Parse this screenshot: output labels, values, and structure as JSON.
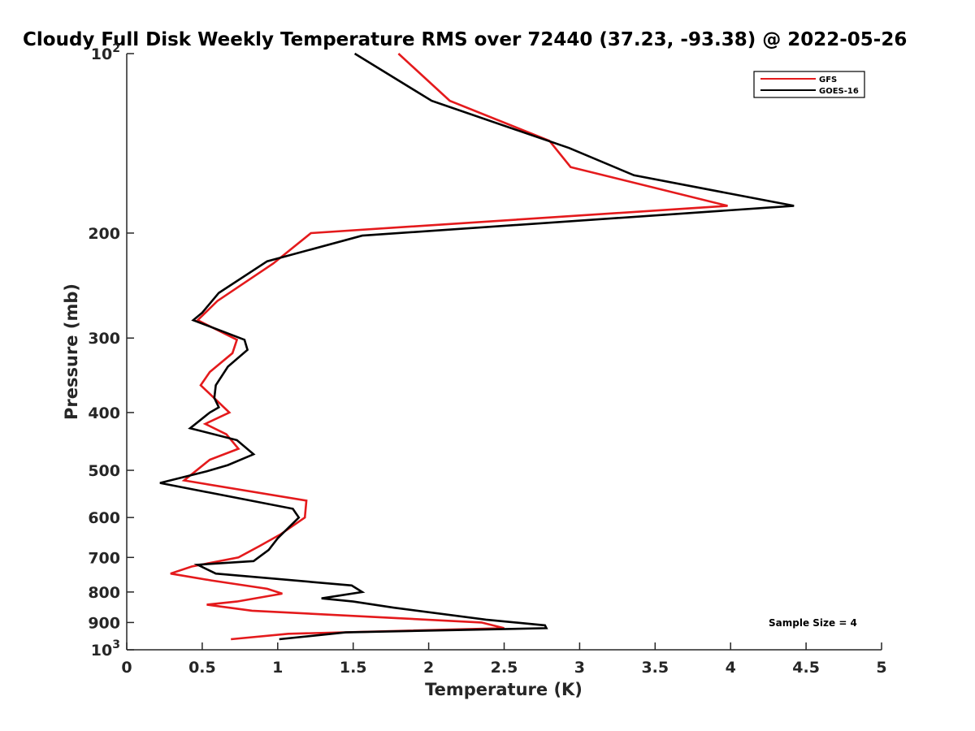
{
  "chart_data": {
    "type": "line",
    "title": "Cloudy Full Disk Weekly Temperature RMS over 72440 (37.23, -93.38) @ 2022-05-26",
    "xlabel": "Temperature (K)",
    "ylabel": "Pressure (mb)",
    "xlim": [
      0,
      5
    ],
    "ylim": [
      100,
      1000
    ],
    "y_scale": "log",
    "y_reversed": true,
    "x_ticks": [
      "0",
      "0.5",
      "1",
      "1.5",
      "2",
      "2.5",
      "3",
      "3.5",
      "4",
      "4.5",
      "5"
    ],
    "y_tick_values": [
      100,
      200,
      300,
      400,
      500,
      600,
      700,
      800,
      900,
      1000
    ],
    "y_tick_labels": [
      "10^2",
      "200",
      "300",
      "400",
      "500",
      "600",
      "700",
      "800",
      "900",
      "10^3"
    ],
    "legend_position": "top-right",
    "annotation": "Sample Size = 4",
    "series": [
      {
        "name": "GFS",
        "color": "#e41a1c",
        "points": [
          [
            1.8,
            100
          ],
          [
            2.14,
            120
          ],
          [
            2.8,
            140
          ],
          [
            2.94,
            155
          ],
          [
            3.98,
            180
          ],
          [
            1.22,
            200
          ],
          [
            0.97,
            225
          ],
          [
            0.6,
            260
          ],
          [
            0.47,
            280
          ],
          [
            0.73,
            302
          ],
          [
            0.7,
            318
          ],
          [
            0.55,
            342
          ],
          [
            0.49,
            360
          ],
          [
            0.68,
            400
          ],
          [
            0.52,
            418
          ],
          [
            0.66,
            435
          ],
          [
            0.74,
            460
          ],
          [
            0.55,
            480
          ],
          [
            0.38,
            520
          ],
          [
            1.19,
            562
          ],
          [
            1.18,
            600
          ],
          [
            1.02,
            640
          ],
          [
            0.88,
            670
          ],
          [
            0.74,
            700
          ],
          [
            0.43,
            725
          ],
          [
            0.29,
            745
          ],
          [
            0.56,
            765
          ],
          [
            0.93,
            790
          ],
          [
            1.03,
            805
          ],
          [
            0.73,
            830
          ],
          [
            0.53,
            840
          ],
          [
            0.83,
            860
          ],
          [
            2.35,
            900
          ],
          [
            2.5,
            920
          ],
          [
            1.07,
            940
          ],
          [
            0.69,
            960
          ]
        ]
      },
      {
        "name": "GOES-16",
        "color": "#000000",
        "points": [
          [
            1.51,
            100
          ],
          [
            2.02,
            120
          ],
          [
            2.93,
            144
          ],
          [
            3.36,
            160
          ],
          [
            4.42,
            180
          ],
          [
            1.56,
            202
          ],
          [
            0.93,
            223
          ],
          [
            0.61,
            252
          ],
          [
            0.5,
            272
          ],
          [
            0.44,
            280
          ],
          [
            0.78,
            302
          ],
          [
            0.8,
            314
          ],
          [
            0.67,
            335
          ],
          [
            0.59,
            360
          ],
          [
            0.58,
            378
          ],
          [
            0.61,
            392
          ],
          [
            0.55,
            400
          ],
          [
            0.42,
            425
          ],
          [
            0.73,
            445
          ],
          [
            0.84,
            470
          ],
          [
            0.67,
            490
          ],
          [
            0.53,
            502
          ],
          [
            0.22,
            525
          ],
          [
            1.1,
            580
          ],
          [
            1.14,
            600
          ],
          [
            1.0,
            650
          ],
          [
            0.94,
            680
          ],
          [
            0.84,
            710
          ],
          [
            0.47,
            720
          ],
          [
            0.59,
            745
          ],
          [
            1.49,
            780
          ],
          [
            1.56,
            800
          ],
          [
            1.29,
            820
          ],
          [
            1.5,
            830
          ],
          [
            1.77,
            850
          ],
          [
            2.38,
            890
          ],
          [
            2.77,
            910
          ],
          [
            2.78,
            920
          ],
          [
            1.45,
            935
          ],
          [
            1.01,
            960
          ]
        ]
      }
    ]
  }
}
